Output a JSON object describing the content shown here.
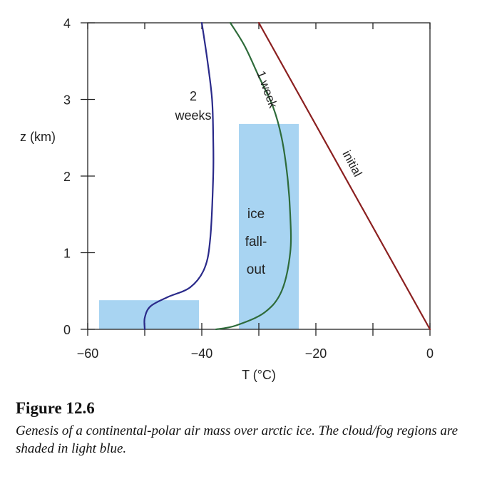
{
  "chart_data": {
    "type": "line",
    "x_axis": {
      "label": "T (°C)",
      "range": [
        -60,
        0
      ],
      "ticks": [
        -60,
        -40,
        -20,
        0
      ],
      "tick_labels": [
        "−60",
        "−40",
        "−20",
        "0"
      ]
    },
    "y_axis": {
      "label": "z (km)",
      "range": [
        0,
        4
      ],
      "ticks": [
        0,
        1,
        2,
        3,
        4
      ],
      "tick_labels": [
        "0",
        "1",
        "2",
        "3",
        "4"
      ]
    },
    "series": [
      {
        "name": "initial",
        "label": "initial",
        "color": "#8b2020",
        "points": [
          [
            0,
            0
          ],
          [
            -30,
            4
          ]
        ]
      },
      {
        "name": "1 week",
        "label": "1 week",
        "color": "#2e6b3a",
        "points": [
          [
            -37.5,
            0
          ],
          [
            -34,
            0.05
          ],
          [
            -29,
            0.22
          ],
          [
            -26,
            0.5
          ],
          [
            -24.5,
            1
          ],
          [
            -24.5,
            1.5
          ],
          [
            -25,
            2
          ],
          [
            -26,
            2.5
          ],
          [
            -27.5,
            2.9
          ],
          [
            -30,
            3.3
          ],
          [
            -32.5,
            3.7
          ],
          [
            -35,
            4
          ]
        ]
      },
      {
        "name": "2 weeks",
        "label_lines": [
          "2",
          "weeks"
        ],
        "color": "#2a2a8a",
        "points": [
          [
            -50,
            0
          ],
          [
            -50,
            0.15
          ],
          [
            -49,
            0.3
          ],
          [
            -46,
            0.42
          ],
          [
            -42,
            0.55
          ],
          [
            -39.5,
            0.8
          ],
          [
            -38.5,
            1.2
          ],
          [
            -38,
            2
          ],
          [
            -38,
            2.5
          ],
          [
            -38.2,
            3
          ],
          [
            -39,
            3.5
          ],
          [
            -40,
            4
          ]
        ]
      }
    ],
    "shaded_regions": [
      {
        "name": "low-fog",
        "x": [
          -58,
          -40.5
        ],
        "z": [
          0,
          0.38
        ],
        "color": "#a8d4f2"
      },
      {
        "name": "ice-fallout",
        "x": [
          -33.5,
          -23
        ],
        "z": [
          0,
          2.68
        ],
        "color": "#a8d4f2"
      }
    ],
    "annotations": [
      {
        "text_lines": [
          "ice",
          "fall-",
          "out"
        ]
      }
    ]
  },
  "caption": {
    "title": "Figure 12.6",
    "text": "Genesis of a continental-polar air mass over arctic ice.   The cloud/fog regions are shaded in light blue."
  }
}
